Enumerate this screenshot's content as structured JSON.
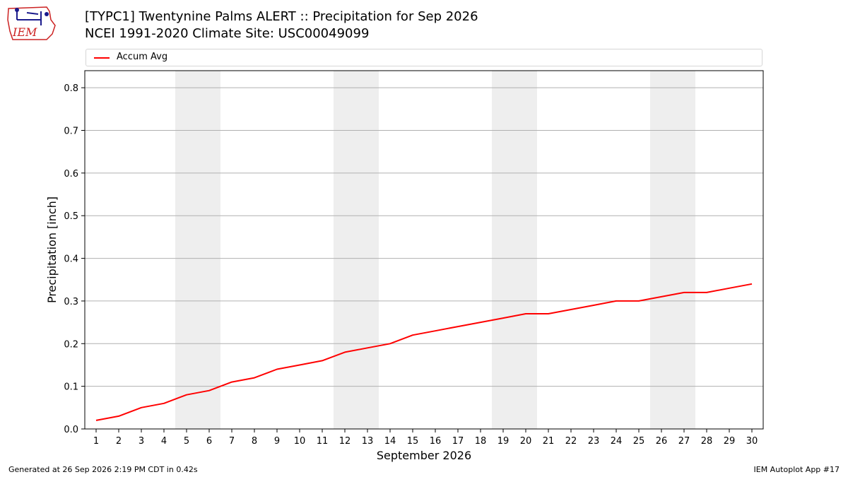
{
  "logo": {
    "text": "IEM"
  },
  "title": {
    "line1": "[TYPC1] Twentynine Palms ALERT :: Precipitation for Sep 2026",
    "line2": "NCEI 1991-2020 Climate Site: USC00049099"
  },
  "chart_data": {
    "type": "line",
    "xlabel": "September 2026",
    "ylabel": "Precipitation [inch]",
    "x": [
      1,
      2,
      3,
      4,
      5,
      6,
      7,
      8,
      9,
      10,
      11,
      12,
      13,
      14,
      15,
      16,
      17,
      18,
      19,
      20,
      21,
      22,
      23,
      24,
      25,
      26,
      27,
      28,
      29,
      30
    ],
    "xlim": [
      0.5,
      30.5
    ],
    "ylim": [
      0,
      0.84
    ],
    "yticks": [
      0.0,
      0.1,
      0.2,
      0.3,
      0.4,
      0.5,
      0.6,
      0.7,
      0.8
    ],
    "ytick_labels": [
      "0.0",
      "0.1",
      "0.2",
      "0.3",
      "0.4",
      "0.5",
      "0.6",
      "0.7",
      "0.8"
    ],
    "grid": "horizontal",
    "legend_position": "top",
    "weekend_shading": [
      [
        4.5,
        6.5
      ],
      [
        11.5,
        13.5
      ],
      [
        18.5,
        20.5
      ],
      [
        25.5,
        27.5
      ]
    ],
    "series": [
      {
        "name": "Accum Avg",
        "color": "#ff0000",
        "values": [
          0.02,
          0.03,
          0.05,
          0.06,
          0.08,
          0.09,
          0.11,
          0.12,
          0.14,
          0.15,
          0.16,
          0.18,
          0.19,
          0.2,
          0.22,
          0.23,
          0.24,
          0.25,
          0.26,
          0.27,
          0.27,
          0.28,
          0.29,
          0.3,
          0.3,
          0.31,
          0.32,
          0.32,
          0.33,
          0.34
        ]
      }
    ]
  },
  "footer": {
    "left": "Generated at 26 Sep 2026 2:19 PM CDT in 0.42s",
    "right": "IEM Autoplot App #17"
  }
}
